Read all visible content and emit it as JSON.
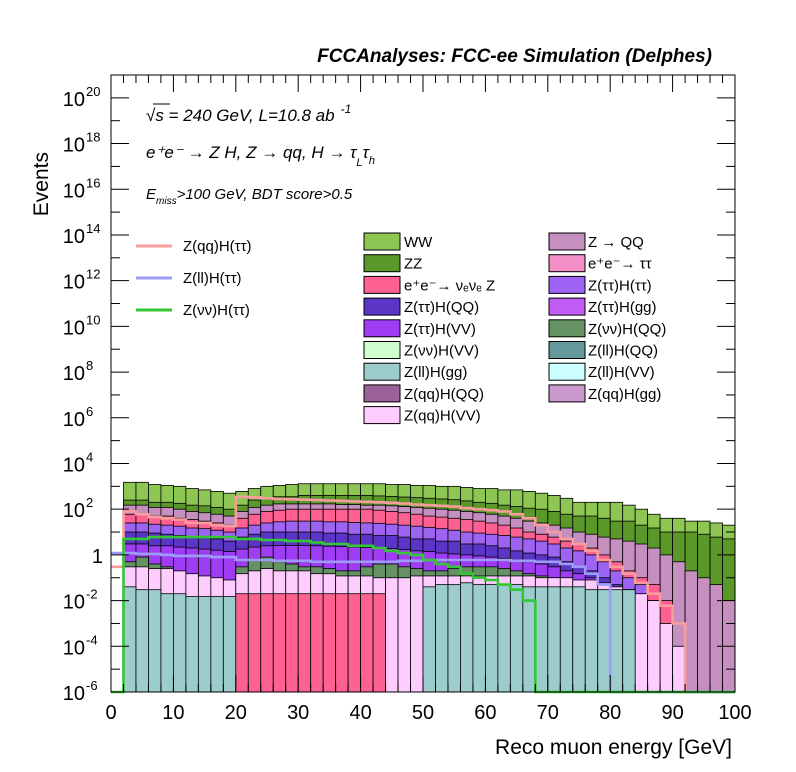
{
  "chart_data": {
    "type": "bar",
    "stacked": true,
    "title": "FCCAnalyses: FCC-ee Simulation (Delphes)",
    "xlabel": "Reco muon energy [GeV]",
    "ylabel": "Events",
    "xlim": [
      0,
      100
    ],
    "ylim": [
      1e-06,
      1e+21
    ],
    "log_y": true,
    "bin_width": 2,
    "x_ticks": [
      "0",
      "10",
      "20",
      "30",
      "40",
      "50",
      "60",
      "70",
      "80",
      "90",
      "100"
    ],
    "y_ticks": [
      {
        "base": "10",
        "exp": "-6",
        "value": 1e-06
      },
      {
        "base": "10",
        "exp": "-4",
        "value": 0.0001
      },
      {
        "base": "10",
        "exp": "-2",
        "value": 0.01
      },
      {
        "base": "1",
        "exp": "",
        "value": 1
      },
      {
        "base": "10",
        "exp": "2",
        "value": 100.0
      },
      {
        "base": "10",
        "exp": "4",
        "value": 10000.0
      },
      {
        "base": "10",
        "exp": "6",
        "value": 1000000.0
      },
      {
        "base": "10",
        "exp": "8",
        "value": 100000000.0
      },
      {
        "base": "10",
        "exp": "10",
        "value": 10000000000.0
      },
      {
        "base": "10",
        "exp": "12",
        "value": 1000000000000.0
      },
      {
        "base": "10",
        "exp": "14",
        "value": 100000000000000.0
      },
      {
        "base": "10",
        "exp": "16",
        "value": 1e+16
      },
      {
        "base": "10",
        "exp": "18",
        "value": 1e+18
      },
      {
        "base": "10",
        "exp": "20",
        "value": 1e+20
      }
    ],
    "annotations": {
      "sqrt_s": "√s = 240 GeV, L=10.8 ab",
      "lumi_exp": "-1",
      "process": "e⁺e⁻ → Z H, Z → qq, H → τ",
      "tau_l": "L",
      "tau_h": "h",
      "tau2": "τ",
      "cut_prefix": "E",
      "cut_sub": "miss",
      "cut_text": ">100 GeV, BDT score>0.5"
    },
    "signals": [
      {
        "name": "Z(qq)H(ττ)",
        "color": "#f89c9c",
        "values": [
          0.3,
          80,
          60,
          45,
          40,
          35,
          25,
          25,
          20,
          18,
          350,
          330,
          300,
          280,
          270,
          260,
          250,
          240,
          230,
          220,
          210,
          200,
          190,
          175,
          160,
          150,
          140,
          130,
          110,
          100,
          90,
          80,
          60,
          40,
          20,
          10,
          5,
          3,
          1.5,
          0.6,
          0.3,
          0.15,
          0.06,
          0.02,
          0.006,
          0.001,
          1e-07,
          1e-07,
          1e-07,
          1e-07
        ]
      },
      {
        "name": "Z(ll)H(ττ)",
        "color": "#9c9cf8",
        "values": [
          1.2,
          1.2,
          1.1,
          1.1,
          1.0,
          0.9,
          0.9,
          0.9,
          0.8,
          0.8,
          0.6,
          0.6,
          0.6,
          0.55,
          0.55,
          0.55,
          0.5,
          0.5,
          0.5,
          0.5,
          0.5,
          0.5,
          0.5,
          0.55,
          0.55,
          0.6,
          0.6,
          0.6,
          0.6,
          0.6,
          0.6,
          0.6,
          0.55,
          0.55,
          0.5,
          0.5,
          0.4,
          0.3,
          0.15,
          0.05,
          1e-07,
          1e-07,
          1e-07,
          1e-07,
          1e-07,
          1e-07,
          1e-07,
          1e-07,
          1e-07,
          1e-07
        ]
      },
      {
        "name": "Z(νν)H(ττ)",
        "color": "#33c733",
        "values": [
          1e-07,
          5,
          5,
          6,
          6,
          6,
          6,
          6,
          6,
          6,
          5,
          5,
          4.5,
          4.5,
          4,
          4,
          3.5,
          3,
          3,
          2.5,
          2.5,
          2,
          1.5,
          1.2,
          1,
          0.6,
          0.4,
          0.3,
          0.15,
          0.1,
          0.08,
          0.05,
          0.03,
          0.01,
          1e-07,
          1e-07,
          1e-07,
          1e-07,
          1e-07,
          1e-07,
          1e-07,
          1e-07,
          1e-07,
          1e-07,
          1e-07,
          1e-07,
          1e-07,
          1e-07,
          1e-07,
          1e-07
        ]
      }
    ],
    "backgrounds": [
      {
        "name": "WW",
        "color": "#8dc653"
      },
      {
        "name": "Z → QQ",
        "color": "#c58fbf"
      },
      {
        "name": "ZZ",
        "color": "#5a982a"
      },
      {
        "name": "e⁺e⁻→ ττ",
        "color": "#f48fc7"
      },
      {
        "name": "e⁺e⁻→ νₑνₑ Z",
        "color": "#fe6191"
      },
      {
        "name": "Z(ττ)H(ττ)",
        "color": "#9d63f3"
      },
      {
        "name": "Z(ττ)H(QQ)",
        "color": "#5a35c6"
      },
      {
        "name": "Z(ττ)H(gg)",
        "color": "#c15cf4"
      },
      {
        "name": "Z(ττ)H(VV)",
        "color": "#9f3df4"
      },
      {
        "name": "Z(νν)H(QQ)",
        "color": "#659263"
      },
      {
        "name": "Z(νν)H(VV)",
        "color": "#cfffcf"
      },
      {
        "name": "Z(ll)H(QQ)",
        "color": "#63999a"
      },
      {
        "name": "Z(ll)H(gg)",
        "color": "#9ccccc"
      },
      {
        "name": "Z(ll)H(VV)",
        "color": "#ccffff"
      },
      {
        "name": "Z(qq)H(QQ)",
        "color": "#9b6299"
      },
      {
        "name": "Z(qq)H(gg)",
        "color": "#cc99cc"
      },
      {
        "name": "Z(qq)H(VV)",
        "color": "#ffccff"
      }
    ],
    "stack_levels": [
      {
        "color": "#8dc653",
        "values": [
          1e-06,
          1500,
          1500,
          1200,
          1100,
          1000,
          800,
          700,
          600,
          500,
          600,
          800,
          1000,
          1100,
          1200,
          1300,
          1300,
          1300,
          1300,
          1300,
          1300,
          1300,
          1200,
          1200,
          1100,
          1100,
          1000,
          1000,
          900,
          800,
          800,
          700,
          700,
          600,
          500,
          400,
          300,
          200,
          200,
          200,
          200,
          150,
          100,
          60,
          40,
          40,
          30,
          30,
          25,
          20
        ]
      },
      {
        "color": "#5a982a",
        "values": [
          1e-06,
          250,
          250,
          200,
          200,
          180,
          150,
          140,
          120,
          100,
          150,
          250,
          300,
          350,
          350,
          400,
          400,
          400,
          400,
          400,
          400,
          380,
          360,
          340,
          320,
          300,
          280,
          260,
          230,
          200,
          180,
          150,
          130,
          110,
          100,
          80,
          60,
          50,
          50,
          40,
          30,
          30,
          20,
          15,
          10,
          10,
          10,
          8,
          6,
          5
        ]
      },
      {
        "color": "#c58fbf",
        "values": [
          1e-06,
          150,
          150,
          120,
          120,
          100,
          80,
          70,
          60,
          50,
          80,
          120,
          150,
          170,
          170,
          170,
          170,
          170,
          160,
          160,
          150,
          150,
          140,
          130,
          120,
          110,
          100,
          90,
          80,
          70,
          60,
          50,
          40,
          30,
          25,
          20,
          15,
          10,
          8,
          6,
          5,
          4,
          3,
          2,
          1,
          0.5,
          0.2,
          0.1,
          0.05,
          0.01
        ]
      },
      {
        "color": "#fe6191",
        "values": [
          1e-06,
          60,
          60,
          50,
          50,
          40,
          35,
          30,
          25,
          20,
          40,
          60,
          80,
          90,
          100,
          100,
          100,
          100,
          100,
          100,
          100,
          90,
          80,
          70,
          60,
          50,
          45,
          40,
          35,
          30,
          25,
          20,
          15,
          10,
          8,
          6,
          4,
          3,
          2,
          1,
          0.5,
          0.2,
          0.1,
          0.05,
          0.01,
          1e-05,
          1e-06,
          1e-06,
          1e-06,
          1e-06
        ]
      },
      {
        "color": "#9d63f3",
        "values": [
          1e-06,
          25,
          25,
          22,
          20,
          18,
          15,
          14,
          12,
          10,
          15,
          20,
          25,
          28,
          30,
          30,
          30,
          28,
          28,
          26,
          25,
          24,
          22,
          20,
          18,
          16,
          14,
          12,
          10,
          9,
          8,
          7,
          6,
          5,
          4,
          3,
          2,
          1.5,
          1,
          0.5,
          0.2,
          0.1,
          0.05,
          0.01,
          1e-05,
          1e-06,
          1e-06,
          1e-06,
          1e-06,
          1e-06
        ]
      },
      {
        "color": "#5a35c6",
        "values": [
          1e-06,
          10,
          10,
          9,
          8,
          7,
          6,
          5.5,
          5,
          4,
          6,
          8,
          10,
          10,
          10,
          10,
          10,
          9,
          9,
          8,
          8,
          7,
          7,
          6,
          5,
          5,
          4,
          4,
          3,
          3,
          2.5,
          2,
          1.5,
          1.2,
          1,
          0.8,
          0.5,
          0.3,
          0.2,
          0.1,
          0.05,
          0.02,
          0.01,
          0.0001,
          1e-06,
          1e-06,
          1e-06,
          1e-06,
          1e-06,
          1e-06
        ]
      },
      {
        "color": "#9f3df4",
        "values": [
          1e-06,
          3,
          3,
          2.5,
          2.5,
          2.2,
          2,
          1.8,
          1.6,
          1.4,
          1.8,
          2.2,
          2.5,
          2.6,
          2.6,
          2.6,
          2.5,
          2.4,
          2.3,
          2.2,
          2.1,
          2,
          1.9,
          1.7,
          1.5,
          1.4,
          1.2,
          1.1,
          1,
          0.9,
          0.8,
          0.7,
          0.6,
          0.5,
          0.4,
          0.3,
          0.2,
          0.15,
          0.1,
          0.05,
          0.02,
          0.01,
          0.001,
          0.0001,
          1e-06,
          1e-06,
          1e-06,
          1e-06,
          1e-06,
          1e-06
        ]
      },
      {
        "color": "#659263",
        "values": [
          1e-06,
          0.5,
          0.8,
          0.4,
          0.3,
          0.15,
          0.08,
          0.05,
          0.04,
          0.05,
          0.3,
          0.6,
          0.8,
          0.5,
          0.4,
          0.3,
          0.3,
          0.25,
          0.2,
          0.2,
          0.3,
          0.4,
          0.4,
          0.3,
          0.25,
          0.2,
          0.2,
          0.25,
          0.3,
          0.3,
          0.3,
          0.25,
          0.2,
          0.15,
          0.12,
          0.1,
          0.08,
          0.06,
          0.05,
          0.04,
          0.03,
          0.02,
          0.01,
          0.01,
          0.001,
          0.0001,
          1e-06,
          1e-06,
          1e-06,
          1e-06
        ]
      },
      {
        "color": "#ffccff",
        "values": [
          1e-06,
          0.3,
          0.3,
          0.25,
          0.25,
          0.2,
          0.15,
          0.12,
          0.1,
          0.08,
          0.15,
          0.2,
          0.25,
          0.2,
          0.2,
          0.2,
          0.15,
          0.15,
          0.12,
          0.12,
          0.12,
          0.1,
          0.1,
          0.1,
          0.12,
          0.12,
          0.12,
          0.12,
          0.12,
          0.12,
          0.12,
          0.12,
          0.12,
          0.12,
          0.1,
          0.1,
          0.1,
          0.08,
          0.08,
          0.06,
          0.04,
          0.03,
          0.02,
          0.01,
          0.001,
          0.0001,
          1e-06,
          1e-06,
          1e-06,
          1e-06
        ]
      },
      {
        "color": "#9ccccc",
        "values": [
          1e-06,
          0.04,
          0.03,
          0.03,
          0.02,
          0.02,
          0.015,
          0.015,
          0.015,
          0.015,
          1e-06,
          1e-06,
          1e-06,
          1e-06,
          1e-06,
          1e-06,
          1e-06,
          1e-06,
          1e-06,
          1e-06,
          1e-06,
          1e-06,
          1e-06,
          1e-06,
          1e-06,
          0.04,
          0.05,
          0.05,
          0.06,
          0.05,
          0.05,
          0.05,
          0.05,
          0.04,
          0.04,
          0.04,
          0.04,
          0.04,
          0.03,
          0.03,
          0.03,
          0.03,
          1e-06,
          1e-06,
          1e-06,
          1e-06,
          1e-06,
          1e-06,
          1e-06,
          1e-06
        ]
      },
      {
        "color": "#fe6191",
        "values": [
          1e-06,
          1e-06,
          1e-06,
          1e-06,
          1e-06,
          1e-06,
          1e-06,
          1e-06,
          1e-06,
          1e-06,
          0.02,
          0.02,
          0.02,
          0.02,
          0.02,
          0.02,
          0.02,
          0.02,
          0.02,
          0.02,
          0.02,
          0.02,
          1e-06,
          1e-06,
          1e-06,
          1e-06,
          1e-06,
          1e-06,
          1e-06,
          1e-06,
          1e-06,
          1e-06,
          1e-06,
          1e-06,
          1e-06,
          1e-06,
          1e-06,
          1e-06,
          1e-06,
          1e-06,
          1e-06,
          1e-06,
          1e-06,
          1e-06,
          1e-06,
          1e-06,
          1e-06,
          1e-06,
          1e-06,
          1e-06
        ]
      }
    ]
  },
  "legend": {
    "signals": [
      "Z(qq)H(ττ)",
      "Z(ll)H(ττ)",
      "Z(νν)H(ττ)"
    ],
    "col1": [
      "WW",
      "ZZ",
      "e⁺e⁻→ νₑνₑ Z",
      "Z(ττ)H(QQ)",
      "Z(ττ)H(VV)",
      "Z(νν)H(VV)",
      "Z(ll)H(gg)",
      "Z(qq)H(QQ)",
      "Z(qq)H(VV)"
    ],
    "col2": [
      "Z → QQ",
      "e⁺e⁻→ ττ",
      "Z(ττ)H(ττ)",
      "Z(ττ)H(gg)",
      "Z(νν)H(QQ)",
      "Z(ll)H(QQ)",
      "Z(ll)H(VV)",
      "Z(qq)H(gg)"
    ]
  }
}
